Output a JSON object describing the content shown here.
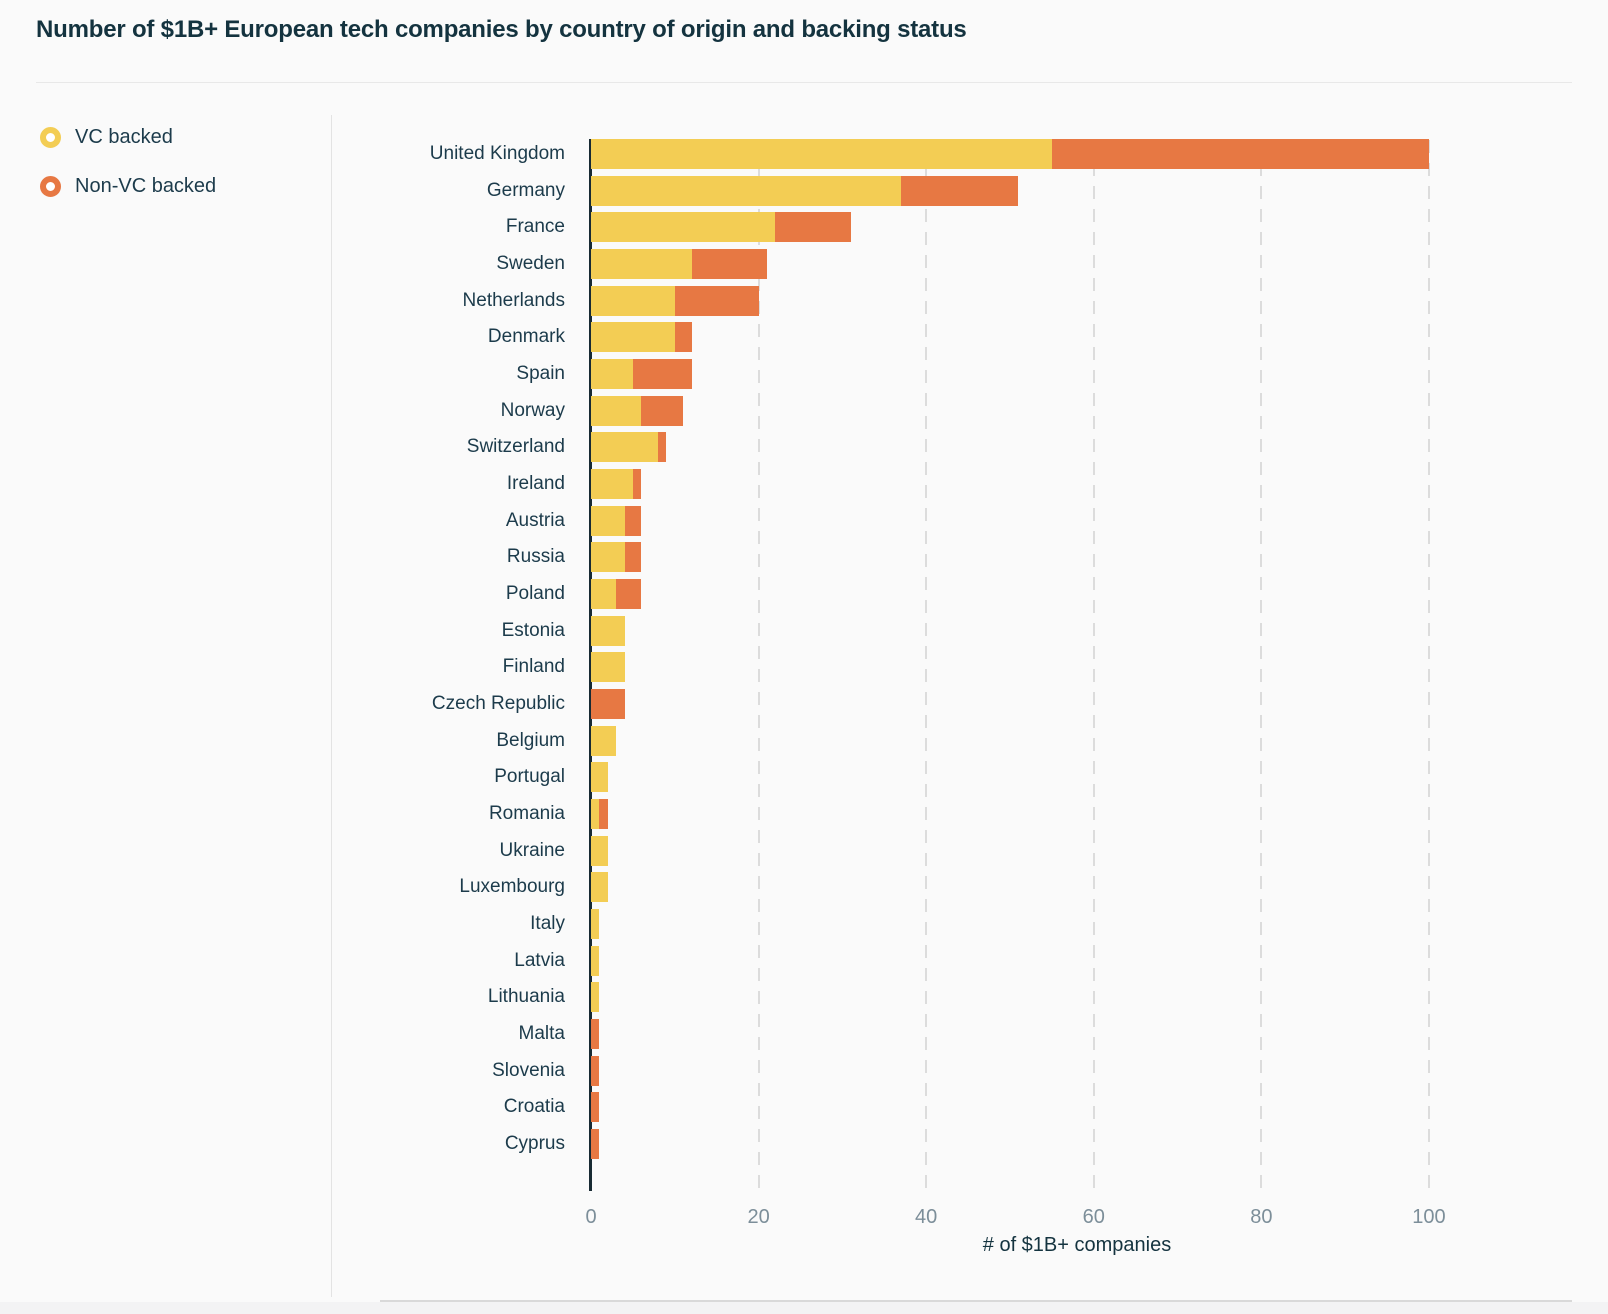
{
  "header": {
    "title": "Number of $1B+ European tech companies by country of origin and backing status"
  },
  "legend": {
    "items": [
      {
        "label": "VC backed",
        "color": "#F3CD54"
      },
      {
        "label": "Non-VC backed",
        "color": "#E77843"
      }
    ]
  },
  "chart_data": {
    "type": "bar",
    "orientation": "horizontal",
    "stacked": true,
    "title": "Number of $1B+ European tech companies by country of origin and backing status",
    "categories": [
      "United Kingdom",
      "Germany",
      "France",
      "Sweden",
      "Netherlands",
      "Denmark",
      "Spain",
      "Norway",
      "Switzerland",
      "Ireland",
      "Austria",
      "Russia",
      "Poland",
      "Estonia",
      "Finland",
      "Czech Republic",
      "Belgium",
      "Portugal",
      "Romania",
      "Ukraine",
      "Luxembourg",
      "Italy",
      "Latvia",
      "Lithuania",
      "Malta",
      "Slovenia",
      "Croatia",
      "Cyprus"
    ],
    "series": [
      {
        "name": "VC backed",
        "color": "#F3CD54",
        "values": [
          55,
          37,
          22,
          12,
          10,
          10,
          5,
          6,
          8,
          5,
          4,
          4,
          3,
          4,
          4,
          0,
          3,
          2,
          1,
          2,
          2,
          1,
          1,
          1,
          0,
          0,
          0,
          0
        ]
      },
      {
        "name": "Non-VC backed",
        "color": "#E77843",
        "values": [
          45,
          14,
          9,
          9,
          10,
          2,
          7,
          5,
          1,
          1,
          2,
          2,
          3,
          0,
          0,
          4,
          0,
          0,
          1,
          0,
          0,
          0,
          0,
          0,
          1,
          1,
          1,
          1
        ]
      }
    ],
    "totals": [
      100,
      51,
      31,
      21,
      20,
      12,
      12,
      11,
      9,
      6,
      6,
      6,
      6,
      4,
      4,
      4,
      3,
      2,
      2,
      2,
      2,
      1,
      1,
      1,
      1,
      1,
      1,
      1
    ],
    "xlabel": "# of $1B+ companies",
    "x_ticks": [
      0,
      20,
      40,
      60,
      80,
      100
    ],
    "xlim": [
      0,
      116
    ],
    "grid": "vertical-dashed",
    "legend_position": "left",
    "axis_color": "#182A33",
    "gridline_color": "#DCDCDC",
    "tick_label_color": "#7C8E99"
  }
}
